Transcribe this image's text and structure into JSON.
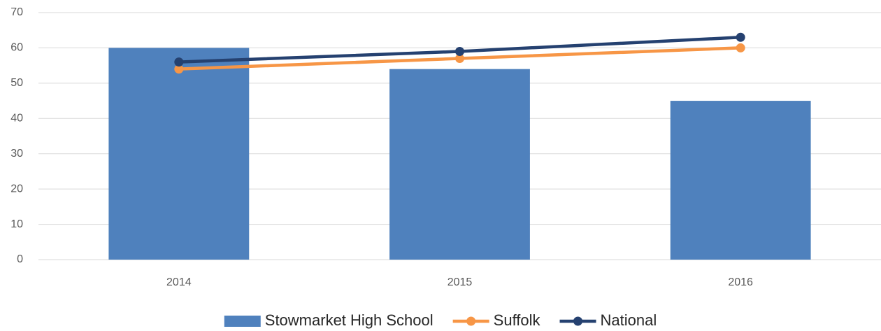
{
  "chart_data": {
    "type": "bar",
    "categories": [
      "2014",
      "2015",
      "2016"
    ],
    "series": [
      {
        "name": "Stowmarket High School",
        "type": "bar",
        "color": "#4f81bd",
        "values": [
          60,
          54,
          45
        ]
      },
      {
        "name": "Suffolk",
        "type": "line",
        "color": "#f79646",
        "values": [
          54,
          57,
          60
        ]
      },
      {
        "name": "National",
        "type": "line",
        "color": "#254170",
        "values": [
          56,
          59,
          63
        ]
      }
    ],
    "ylim": [
      0,
      70
    ],
    "yticks": [
      0,
      10,
      20,
      30,
      40,
      50,
      60,
      70
    ],
    "grid": true,
    "legend": "bottom"
  }
}
